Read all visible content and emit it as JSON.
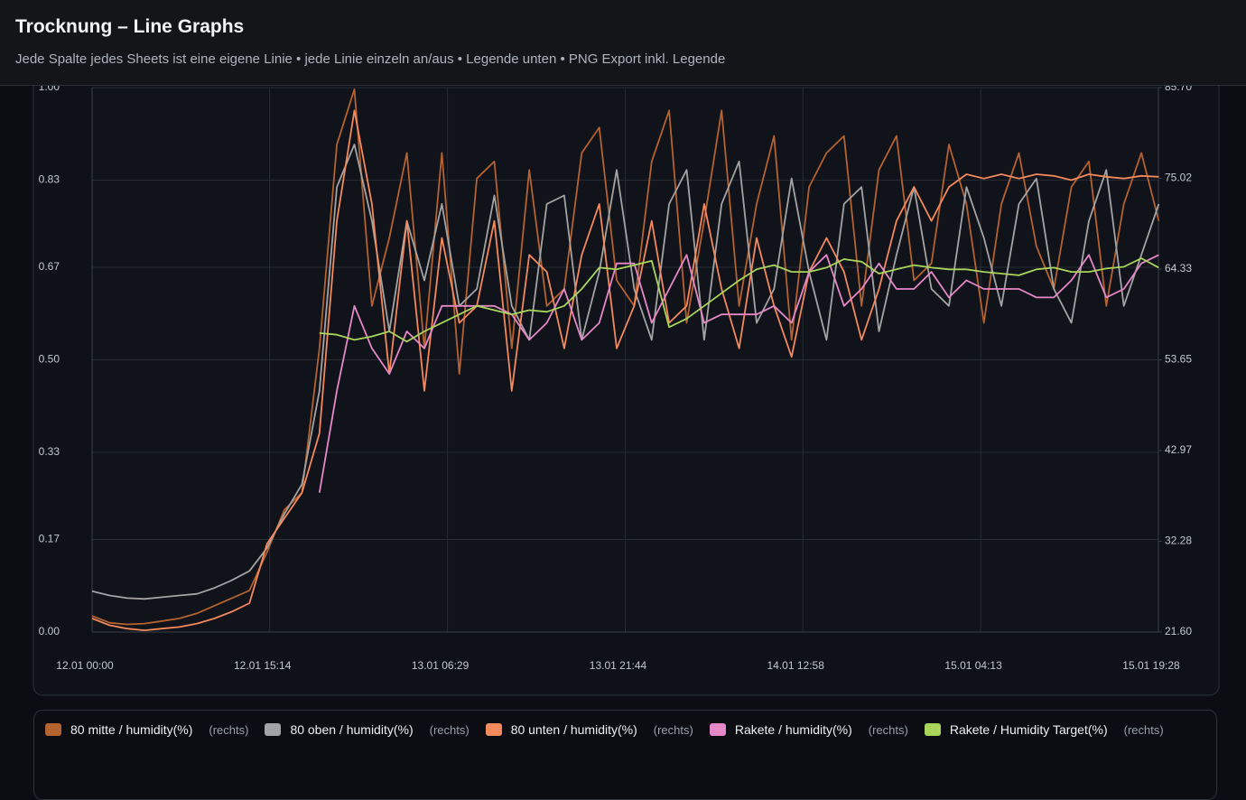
{
  "header": {
    "title": "Trocknung – Line Graphs",
    "subtitle": "Jede Spalte jedes Sheets ist eine eigene Linie • jede Linie einzeln an/aus • Legende unten • PNG Export inkl. Legende"
  },
  "chart_data": {
    "type": "line",
    "x": [
      0,
      1.5,
      3,
      4.5,
      6,
      7.5,
      9,
      10.5,
      12,
      13.5,
      15,
      16.5,
      18,
      19.5,
      21,
      22.5,
      24,
      25.5,
      27,
      28.5,
      30,
      31.5,
      33,
      34.5,
      36,
      37.5,
      39,
      40.5,
      42,
      43.5,
      45,
      46.5,
      48,
      49.5,
      51,
      52.5,
      54,
      55.5,
      57,
      58.5,
      60,
      61.5,
      63,
      64.5,
      66,
      67.5,
      69,
      70.5,
      72,
      73.5,
      75,
      76.5,
      78,
      79.5,
      81,
      82.5,
      84,
      85.5,
      87,
      88.5,
      90,
      91.5
    ],
    "xlim": [
      0,
      91.467
    ],
    "xticks": [
      {
        "value": 0,
        "label": "12.01 00:00"
      },
      {
        "value": 15.233,
        "label": "12.01 15:14"
      },
      {
        "value": 30.483,
        "label": "13.01 06:29"
      },
      {
        "value": 45.733,
        "label": "13.01 21:44"
      },
      {
        "value": 60.967,
        "label": "14.01 12:58"
      },
      {
        "value": 76.217,
        "label": "15.01 04:13"
      },
      {
        "value": 91.467,
        "label": "15.01 19:28"
      }
    ],
    "ylim": [
      0,
      1
    ],
    "yticks": [
      {
        "value": 0,
        "label": "0.00"
      },
      0.17,
      0.33,
      {
        "value": 0.5,
        "label": "0.50"
      },
      0.67,
      0.83,
      {
        "value": 1,
        "label": "1.00"
      }
    ],
    "y2lim": [
      21.6,
      85.7
    ],
    "y2ticks": [
      {
        "value": 21.6,
        "label": "21.60"
      },
      32.28,
      42.97,
      53.65,
      64.33,
      75.02,
      {
        "value": 85.7,
        "label": "85.70"
      }
    ],
    "grid": true,
    "legend": "bottom",
    "series": [
      {
        "name": "80 mitte / humidity(%)",
        "axis_label": "(rechts)",
        "axis": "y2",
        "color": "#b4622f",
        "values": [
          23.5,
          22.7,
          22.5,
          22.6,
          22.9,
          23.2,
          23.8,
          24.7,
          25.6,
          26.5,
          31,
          36,
          38,
          55,
          79,
          85.5,
          60,
          68,
          78,
          55,
          78,
          52,
          75,
          77,
          55,
          76,
          60,
          62,
          78,
          81,
          63,
          60,
          77,
          83,
          58,
          70,
          83,
          60,
          72,
          80,
          56,
          74,
          78,
          80,
          60,
          76,
          80,
          63,
          65,
          79,
          72,
          58,
          72,
          78,
          67,
          62,
          74,
          77,
          60,
          72,
          78,
          70
        ]
      },
      {
        "name": "80 oben / humidity(%)",
        "axis_label": "(rechts)",
        "axis": "y2",
        "color": "#a3a3a3",
        "values": [
          26.4,
          25.9,
          25.6,
          25.5,
          25.7,
          25.9,
          26.1,
          26.8,
          27.7,
          28.8,
          31.5,
          35.5,
          39,
          50,
          74,
          79,
          70,
          57,
          70,
          63,
          72,
          60,
          62,
          73,
          60,
          56,
          72,
          73,
          56,
          64,
          76,
          62,
          56,
          72,
          76,
          56,
          72,
          77,
          58,
          62,
          75,
          64,
          56,
          72,
          74,
          57,
          66,
          74,
          62,
          60,
          74,
          68,
          60,
          72,
          75,
          62,
          58,
          70,
          76,
          60,
          66,
          72
        ]
      },
      {
        "name": "80 unten / humidity(%)",
        "axis_label": "(rechts)",
        "axis": "y2",
        "color": "#f4895c",
        "values": [
          23.2,
          22.4,
          22,
          21.8,
          22,
          22.2,
          22.6,
          23.2,
          24,
          25,
          32,
          35,
          38,
          45,
          70,
          83,
          72,
          52,
          70,
          50,
          68,
          58,
          60,
          70,
          50,
          66,
          64,
          55,
          66,
          72,
          55,
          60,
          70,
          58,
          60,
          72,
          62,
          55,
          68,
          60,
          54,
          64,
          68,
          64,
          56,
          62,
          70,
          74,
          70,
          74,
          75.5,
          75,
          75.5,
          75,
          75.5,
          75.3,
          74.8,
          75.5,
          75.2,
          75,
          75.3,
          75.2
        ]
      },
      {
        "name": "Rakete / humidity(%)",
        "axis_label": "(rechts)",
        "axis": "y2",
        "color": "#e688c8",
        "values": [
          null,
          null,
          null,
          null,
          null,
          null,
          null,
          null,
          null,
          null,
          null,
          null,
          null,
          38,
          50,
          60,
          55,
          52,
          57,
          55,
          60,
          60,
          60,
          60,
          59,
          56,
          58,
          62,
          56,
          58,
          65,
          65,
          58,
          62,
          66,
          58,
          59,
          59,
          59,
          60,
          58,
          64,
          66,
          60,
          62,
          65,
          62,
          62,
          64,
          61,
          63,
          62,
          62,
          62,
          61,
          61,
          63,
          66,
          61,
          62,
          65,
          66
        ]
      },
      {
        "name": "Rakete / Humidity Target(%)",
        "axis_label": "(rechts)",
        "axis": "y2",
        "color": "#a8d55a",
        "values": [
          null,
          null,
          null,
          null,
          null,
          null,
          null,
          null,
          null,
          null,
          null,
          null,
          null,
          56.8,
          56.6,
          56,
          56.4,
          57,
          55.8,
          57,
          58,
          59,
          60,
          59.5,
          59,
          59.5,
          59.3,
          60,
          62,
          64.5,
          64.3,
          64.8,
          65.3,
          57.5,
          58.5,
          60,
          61.5,
          63,
          64.3,
          64.8,
          64,
          64,
          64.5,
          65.5,
          65.2,
          63.8,
          64.3,
          64.8,
          64.5,
          64.3,
          64.3,
          64,
          63.8,
          63.6,
          64.3,
          64.5,
          64,
          64,
          64.4,
          64.6,
          65.6,
          64.5
        ]
      }
    ]
  }
}
